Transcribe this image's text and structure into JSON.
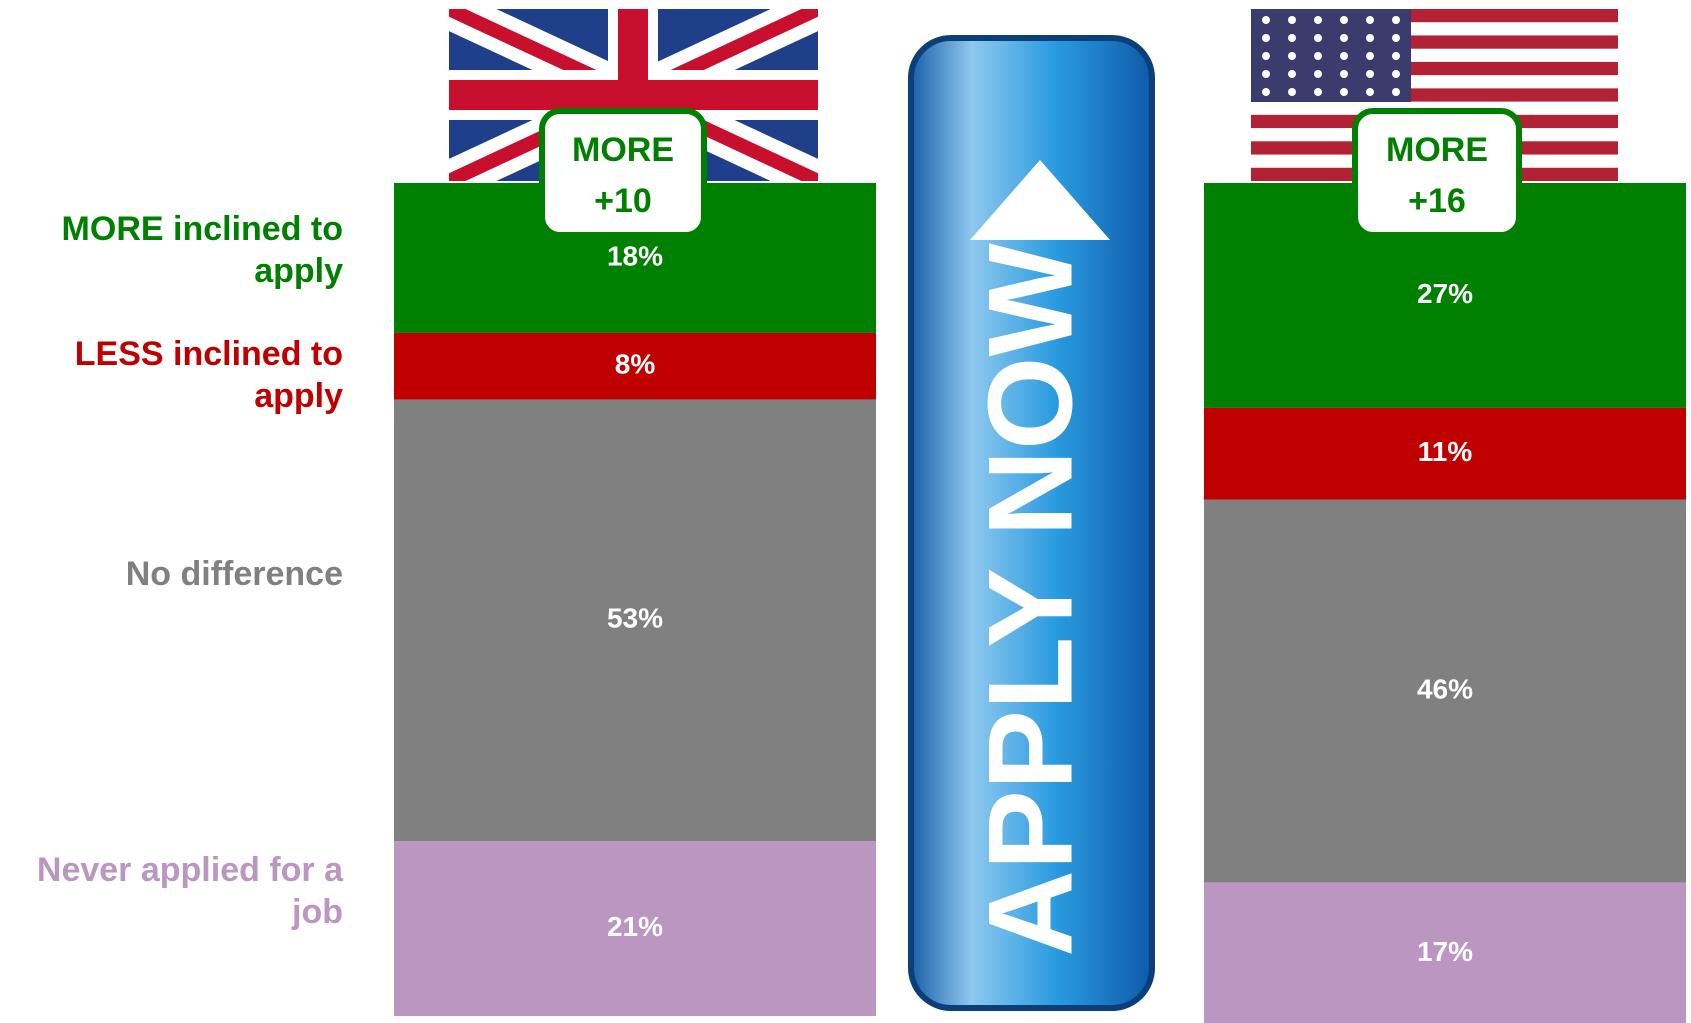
{
  "chart_data": {
    "type": "bar",
    "stacked": true,
    "categories": [
      null,
      null
    ],
    "series": [
      {
        "name": "MORE inclined to apply",
        "color": "#008000",
        "values": [
          18,
          27
        ],
        "value_labels": [
          "18%",
          "27%"
        ]
      },
      {
        "name": "LESS inclined to apply",
        "color": "#c00000",
        "values": [
          8,
          11
        ],
        "value_labels": [
          "8%",
          "11%"
        ]
      },
      {
        "name": "No difference",
        "color": "#808080",
        "values": [
          53,
          46
        ],
        "value_labels": [
          "53%",
          "46%"
        ]
      },
      {
        "name": "Never applied for a job",
        "color": "#bb96c1",
        "values": [
          21,
          17
        ],
        "value_labels": [
          "21%",
          "17%"
        ]
      }
    ],
    "badges": [
      {
        "label": "MORE",
        "text": "+10"
      },
      {
        "label": "MORE",
        "text": "+16"
      }
    ],
    "button_text": "APPLY NOW"
  }
}
